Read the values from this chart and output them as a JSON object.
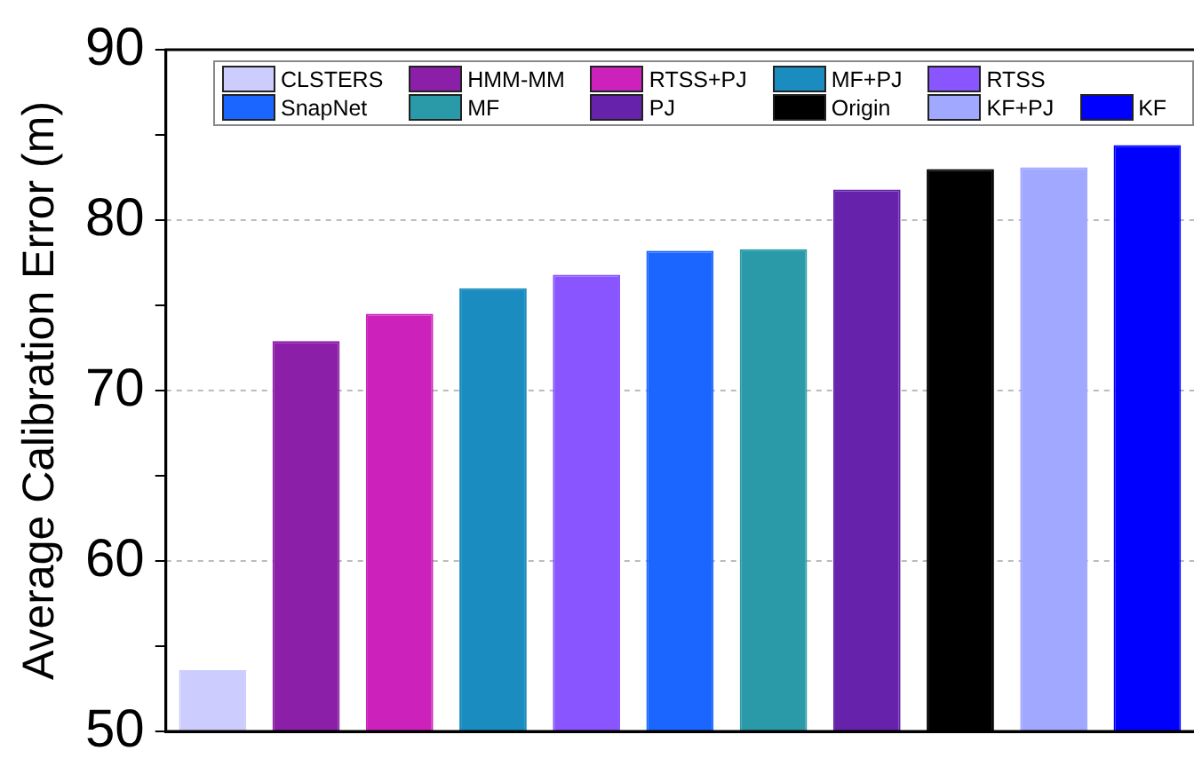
{
  "chart_data": {
    "type": "bar",
    "ylabel": "Average Calibration Error (m)",
    "categories": [
      null,
      null,
      null,
      null,
      null,
      null,
      null,
      null,
      null,
      null,
      null
    ],
    "series": [
      {
        "name": "CLSTERS",
        "color": "#ccccff",
        "values": [
          53.6,
          null,
          null,
          null,
          null,
          null,
          null,
          null,
          null,
          null,
          null
        ]
      },
      {
        "name": "HMM-MM",
        "color": "#8b1fa8",
        "values": [
          null,
          72.9,
          null,
          null,
          null,
          null,
          null,
          null,
          null,
          null,
          null
        ]
      },
      {
        "name": "RTSS+PJ",
        "color": "#cc22bb",
        "values": [
          null,
          null,
          74.5,
          null,
          null,
          null,
          null,
          null,
          null,
          null,
          null
        ]
      },
      {
        "name": "MF+PJ",
        "color": "#1a8cbf",
        "values": [
          null,
          null,
          null,
          76.0,
          null,
          null,
          null,
          null,
          null,
          null,
          null
        ]
      },
      {
        "name": "RTSS",
        "color": "#8855ff",
        "values": [
          null,
          null,
          null,
          null,
          76.8,
          null,
          null,
          null,
          null,
          null,
          null
        ]
      },
      {
        "name": "SnapNet",
        "color": "#1a66ff",
        "values": [
          null,
          null,
          null,
          null,
          null,
          78.2,
          null,
          null,
          null,
          null,
          null
        ]
      },
      {
        "name": "MF",
        "color": "#2a9aa8",
        "values": [
          null,
          null,
          null,
          null,
          null,
          null,
          78.3,
          null,
          null,
          null,
          null
        ]
      },
      {
        "name": "PJ",
        "color": "#6622aa",
        "values": [
          null,
          null,
          null,
          null,
          null,
          null,
          null,
          81.8,
          null,
          null,
          null
        ]
      },
      {
        "name": "Origin",
        "color": "#000000",
        "values": [
          null,
          null,
          null,
          null,
          null,
          null,
          null,
          null,
          83.0,
          null,
          null
        ]
      },
      {
        "name": "KF+PJ",
        "color": "#a0a8ff",
        "values": [
          null,
          null,
          null,
          null,
          null,
          null,
          null,
          null,
          null,
          83.1,
          null
        ]
      },
      {
        "name": "KF",
        "color": "#0000ff",
        "values": [
          null,
          null,
          null,
          null,
          null,
          null,
          null,
          null,
          null,
          null,
          84.4
        ]
      }
    ],
    "ylim": [
      50,
      90
    ],
    "yticks": [
      50,
      {
        "value": 55,
        "label": null
      },
      60,
      {
        "value": 65,
        "label": null
      },
      70,
      {
        "value": 75,
        "label": null
      },
      80,
      {
        "value": 85,
        "label": null
      },
      90
    ],
    "grid": "y",
    "legend": "top"
  }
}
